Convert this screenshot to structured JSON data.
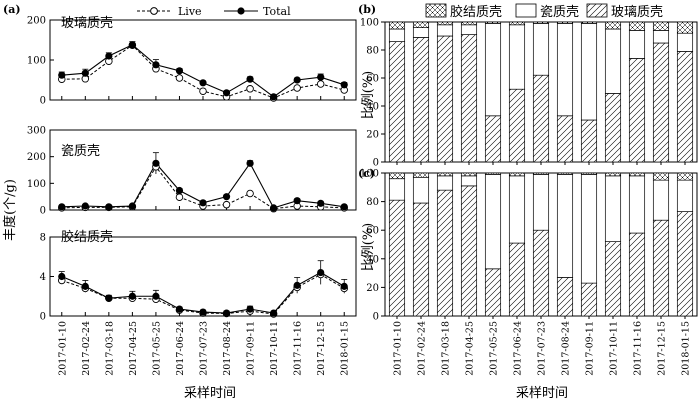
{
  "panels": {
    "a": "(a)",
    "b": "(b)",
    "c": "(c)"
  },
  "dates": [
    "2017-01-10",
    "2017-02-24",
    "2017-03-18",
    "2017-04-25",
    "2017-05-25",
    "2017-06-24",
    "2017-07-23",
    "2017-08-24",
    "2017-09-11",
    "2017-10-11",
    "2017-11-16",
    "2017-12-15",
    "2018-01-15"
  ],
  "chart_data": [
    {
      "type": "line",
      "xlabel": "采样时间",
      "ylabel": "丰度(个/g)",
      "series": [
        {
          "name": "Live"
        },
        {
          "name": "Total"
        }
      ],
      "subplots": [
        {
          "title": "玻璃质壳",
          "ylim": [
            0,
            200
          ],
          "yticks": [
            0,
            100,
            200
          ],
          "live": [
            52,
            53,
            97,
            137,
            78,
            55,
            22,
            8,
            28,
            5,
            30,
            40,
            25
          ],
          "total": [
            62,
            67,
            110,
            138,
            88,
            73,
            43,
            18,
            52,
            8,
            50,
            57,
            38
          ],
          "error": [
            8,
            10,
            8,
            8,
            13,
            6,
            4,
            4,
            6,
            3,
            5,
            8,
            6
          ]
        },
        {
          "title": "瓷质壳",
          "ylim": [
            0,
            300
          ],
          "yticks": [
            0,
            100,
            200,
            300
          ],
          "live": [
            8,
            10,
            10,
            12,
            162,
            48,
            15,
            20,
            62,
            5,
            15,
            12,
            8
          ],
          "total": [
            12,
            15,
            12,
            15,
            175,
            73,
            27,
            50,
            175,
            8,
            35,
            25,
            12
          ],
          "error": [
            4,
            5,
            4,
            4,
            40,
            8,
            6,
            6,
            10,
            3,
            6,
            6,
            4
          ]
        },
        {
          "title": "胶结质壳",
          "ylim": [
            0,
            8
          ],
          "yticks": [
            0,
            4,
            8
          ],
          "live": [
            3.6,
            2.8,
            1.8,
            1.8,
            1.7,
            0.6,
            0.3,
            0.25,
            0.5,
            0.2,
            2.9,
            4.2,
            2.8
          ],
          "total": [
            4.0,
            3.0,
            1.8,
            2.0,
            2.0,
            0.7,
            0.4,
            0.3,
            0.7,
            0.3,
            3.1,
            4.4,
            3.0
          ],
          "error": [
            0.5,
            0.6,
            0.3,
            0.5,
            0.6,
            0.2,
            0.2,
            0.2,
            0.3,
            0.1,
            0.8,
            1.2,
            0.7
          ]
        }
      ]
    },
    {
      "type": "bar",
      "stacked": true,
      "ylabel": "比例(%)",
      "xlabel": "采样时间",
      "ylim": [
        0,
        100
      ],
      "yticks": [
        0,
        20,
        40,
        60,
        80,
        100
      ],
      "series": [
        {
          "name": "玻璃质壳",
          "values": [
            86,
            89,
            90,
            91,
            33,
            52,
            62,
            33,
            30,
            49,
            74,
            85,
            79
          ]
        },
        {
          "name": "瓷质壳",
          "values": [
            9,
            7,
            8,
            7,
            66,
            46,
            37,
            66,
            69,
            46,
            20,
            9,
            13
          ]
        },
        {
          "name": "胶结质壳",
          "values": [
            5,
            4,
            2,
            2,
            1,
            2,
            1,
            1,
            1,
            5,
            6,
            6,
            8
          ]
        }
      ]
    },
    {
      "type": "bar",
      "stacked": true,
      "ylabel": "比例(%)",
      "xlabel": "采样时间",
      "ylim": [
        0,
        100
      ],
      "yticks": [
        0,
        20,
        40,
        60,
        80,
        100
      ],
      "series": [
        {
          "name": "玻璃质壳",
          "values": [
            81,
            79,
            88,
            91,
            33,
            51,
            60,
            27,
            23,
            52,
            58,
            67,
            73
          ]
        },
        {
          "name": "瓷质壳",
          "values": [
            15,
            18,
            10,
            7,
            66,
            47,
            39,
            72,
            76,
            46,
            40,
            28,
            22
          ]
        },
        {
          "name": "胶结质壳",
          "values": [
            4,
            3,
            2,
            2,
            1,
            2,
            1,
            1,
            1,
            2,
            2,
            5,
            5
          ]
        }
      ]
    }
  ]
}
